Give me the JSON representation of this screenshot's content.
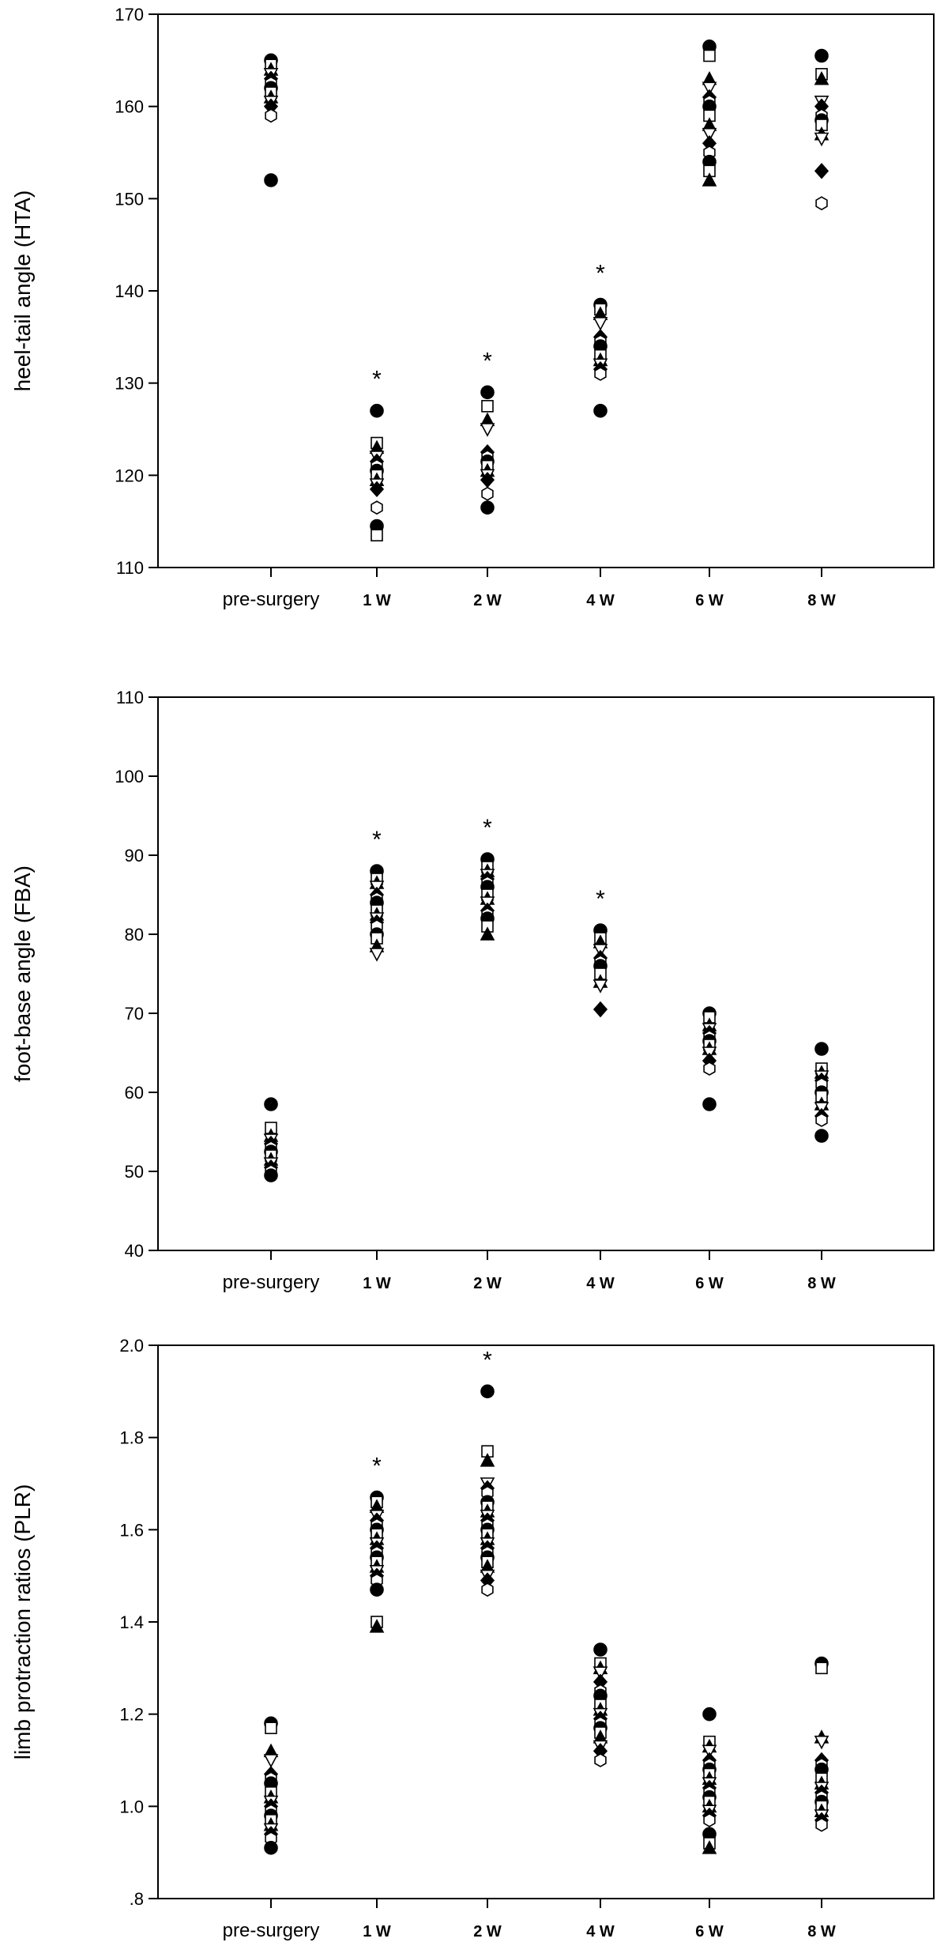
{
  "chart_data": [
    {
      "type": "scatter",
      "ylabel": "heel-tail angle (HTA)",
      "ylim": [
        110,
        170
      ],
      "yticks": [
        "110",
        "120",
        "130",
        "140",
        "150",
        "160",
        "170"
      ],
      "categories": [
        "pre-surgery",
        "1 W",
        "2 W",
        "4 W",
        "6 W",
        "8 W"
      ],
      "significance_marker": "*",
      "significant_categories": [
        "1 W",
        "2 W",
        "4 W"
      ],
      "points": [
        [
          165,
          164.5,
          164,
          163.5,
          163,
          162.5,
          162,
          161.5,
          161,
          160.5,
          160,
          159,
          152
        ],
        [
          127,
          123.5,
          123,
          122,
          121.5,
          121,
          120.5,
          120,
          119.5,
          119,
          118.5,
          116.5,
          114.5,
          113.5
        ],
        [
          129,
          127.5,
          126,
          125,
          122.5,
          122,
          121.5,
          121,
          120.5,
          120,
          119.5,
          118,
          116.5
        ],
        [
          138.5,
          138,
          137.5,
          136.5,
          135,
          134.5,
          134,
          133,
          132.5,
          132,
          131.5,
          131,
          127
        ],
        [
          166.5,
          165.5,
          163,
          162,
          161,
          160.5,
          160,
          159,
          158,
          157,
          156,
          155,
          154,
          153,
          152
        ],
        [
          165.5,
          163.5,
          163,
          160.5,
          160,
          159,
          158.5,
          158,
          157,
          156.5,
          153,
          149.5
        ]
      ]
    },
    {
      "type": "scatter",
      "ylabel": "foot-base angle (FBA)",
      "ylim": [
        40,
        110
      ],
      "yticks": [
        "40",
        "50",
        "60",
        "70",
        "80",
        "90",
        "100",
        "110"
      ],
      "categories": [
        "pre-surgery",
        "1 W",
        "2 W",
        "4 W",
        "6 W",
        "8 W"
      ],
      "significance_marker": "*",
      "significant_categories": [
        "1 W",
        "2 W",
        "4 W"
      ],
      "points": [
        [
          58.5,
          55.5,
          54.5,
          54,
          53.5,
          53,
          52.5,
          52,
          51.5,
          51,
          50.5,
          50,
          49.5
        ],
        [
          88,
          87,
          86.5,
          86,
          85,
          84.5,
          84,
          83,
          82.5,
          82,
          81.5,
          81,
          80,
          79.5,
          78.5,
          77.5
        ],
        [
          89.5,
          88.5,
          88,
          87.5,
          87,
          86.5,
          86,
          85,
          84.5,
          84,
          83,
          82.5,
          82,
          81,
          80
        ],
        [
          80.5,
          79.5,
          79,
          78,
          77,
          76.5,
          76,
          75,
          74,
          73.5,
          70.5
        ],
        [
          70,
          69.5,
          68.5,
          68,
          67.5,
          67,
          66.5,
          66,
          65.5,
          65,
          64,
          63,
          58.5
        ],
        [
          65.5,
          63,
          62.5,
          62,
          61.5,
          61,
          60,
          59.5,
          58.5,
          58,
          57,
          56.5,
          54.5
        ]
      ]
    },
    {
      "type": "scatter",
      "ylabel": "limb protraction ratios (PLR)",
      "ylim": [
        0.8,
        2.0
      ],
      "yticks": [
        ".8",
        "1.0",
        "1.2",
        "1.4",
        "1.6",
        "1.8",
        "2.0"
      ],
      "categories": [
        "pre-surgery",
        "1 W",
        "2 W",
        "4 W",
        "6 W",
        "8 W"
      ],
      "significance_marker": "*",
      "significant_categories": [
        "1 W",
        "2 W"
      ],
      "points": [
        [
          1.18,
          1.17,
          1.12,
          1.1,
          1.07,
          1.06,
          1.05,
          1.03,
          1.02,
          1.01,
          1.0,
          0.99,
          0.98,
          0.97,
          0.96,
          0.95,
          0.94,
          0.93,
          0.91
        ],
        [
          1.67,
          1.66,
          1.65,
          1.63,
          1.62,
          1.61,
          1.6,
          1.59,
          1.58,
          1.57,
          1.56,
          1.55,
          1.54,
          1.53,
          1.52,
          1.51,
          1.5,
          1.49,
          1.47,
          1.4,
          1.39
        ],
        [
          1.9,
          1.77,
          1.75,
          1.7,
          1.69,
          1.68,
          1.66,
          1.65,
          1.64,
          1.63,
          1.62,
          1.61,
          1.6,
          1.59,
          1.58,
          1.57,
          1.56,
          1.55,
          1.54,
          1.53,
          1.52,
          1.5,
          1.49,
          1.47
        ],
        [
          1.34,
          1.31,
          1.3,
          1.29,
          1.27,
          1.25,
          1.24,
          1.22,
          1.21,
          1.2,
          1.19,
          1.18,
          1.17,
          1.16,
          1.15,
          1.13,
          1.12,
          1.1
        ],
        [
          1.2,
          1.14,
          1.13,
          1.12,
          1.1,
          1.09,
          1.08,
          1.07,
          1.06,
          1.05,
          1.04,
          1.03,
          1.02,
          1.01,
          1.0,
          0.99,
          0.98,
          0.97,
          0.94,
          0.92,
          0.91
        ],
        [
          1.31,
          1.3,
          1.15,
          1.14,
          1.1,
          1.09,
          1.08,
          1.06,
          1.05,
          1.04,
          1.03,
          1.02,
          1.01,
          1.0,
          0.99,
          0.98,
          0.97,
          0.96
        ]
      ]
    }
  ]
}
